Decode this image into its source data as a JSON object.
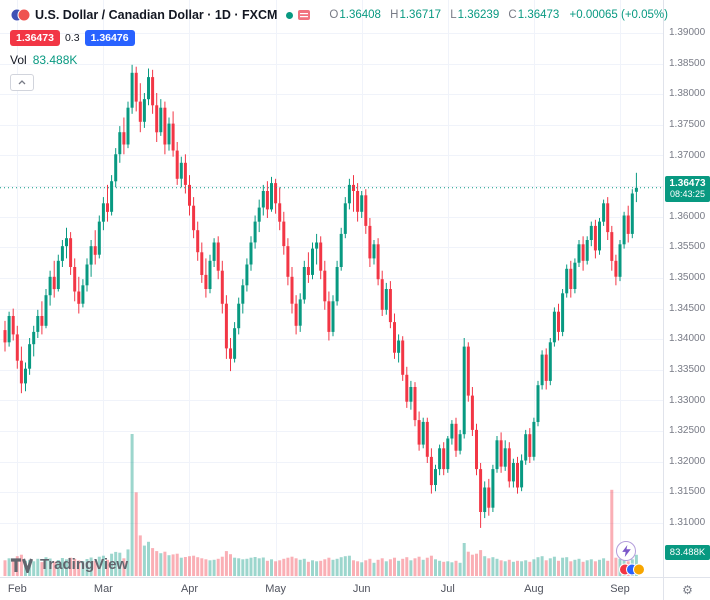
{
  "header": {
    "symbol_title": "U.S. Dollar / Canadian Dollar · 1D · FXCM",
    "ohlc": {
      "o_label": "O",
      "o": "1.36408",
      "h_label": "H",
      "h": "1.36717",
      "l_label": "L",
      "l": "1.36239",
      "c_label": "C",
      "c": "1.36473",
      "change": "+0.00065 (+0.05%)"
    },
    "bid": "1.36473",
    "spread": "0.3",
    "ask": "1.36476",
    "vol_label": "Vol",
    "vol_value": "83.488K"
  },
  "colors": {
    "up": "#089981",
    "down": "#f23645",
    "bid": "#f23645",
    "ask": "#2962ff"
  },
  "price_axis": {
    "ticks": [
      "1.39000",
      "1.38500",
      "1.38000",
      "1.37500",
      "1.37000",
      "1.36500",
      "1.36000",
      "1.35500",
      "1.35000",
      "1.34500",
      "1.34000",
      "1.33500",
      "1.33000",
      "1.32500",
      "1.32000",
      "1.31500",
      "1.31000"
    ],
    "price_badge": "1.36473",
    "countdown": "08:43:25",
    "volume_badge": "83.488K"
  },
  "footer": {
    "brand": "TradingView"
  },
  "chart_data": {
    "type": "candlestick",
    "symbol": "U.S. Dollar / Canadian Dollar",
    "interval": "1D",
    "exchange": "FXCM",
    "ohlc_current": {
      "open": 1.36408,
      "high": 1.36717,
      "low": 1.36239,
      "close": 1.36473,
      "change": 0.00065,
      "change_pct": 0.05
    },
    "y_range": [
      1.31,
      1.39
    ],
    "y_tick_step": 0.005,
    "volume_unit": "K",
    "last_volume": 83.488,
    "x_ticks": [
      {
        "label": "Feb",
        "i": 3
      },
      {
        "label": "Mar",
        "i": 24
      },
      {
        "label": "Apr",
        "i": 45
      },
      {
        "label": "May",
        "i": 66
      },
      {
        "label": "Jun",
        "i": 87
      },
      {
        "label": "Jul",
        "i": 108
      },
      {
        "label": "Aug",
        "i": 129
      },
      {
        "label": "Sep",
        "i": 150
      }
    ],
    "candles": [
      [
        1.3415,
        1.343,
        1.338,
        1.3395,
        62
      ],
      [
        1.3395,
        1.3445,
        1.3388,
        1.3438,
        70
      ],
      [
        1.3438,
        1.345,
        1.3398,
        1.3408,
        66
      ],
      [
        1.3408,
        1.3422,
        1.3352,
        1.3365,
        78
      ],
      [
        1.3365,
        1.3388,
        1.3312,
        1.3328,
        84
      ],
      [
        1.3328,
        1.3362,
        1.3315,
        1.3352,
        60
      ],
      [
        1.3352,
        1.3402,
        1.3342,
        1.3392,
        64
      ],
      [
        1.3392,
        1.3422,
        1.3372,
        1.3412,
        58
      ],
      [
        1.3412,
        1.3448,
        1.3402,
        1.3438,
        68
      ],
      [
        1.3438,
        1.3462,
        1.3408,
        1.3422,
        55
      ],
      [
        1.3422,
        1.3482,
        1.3418,
        1.3472,
        74
      ],
      [
        1.3472,
        1.3512,
        1.3455,
        1.3502,
        69
      ],
      [
        1.3502,
        1.3528,
        1.3468,
        1.3482,
        57
      ],
      [
        1.3482,
        1.3538,
        1.3478,
        1.3528,
        63
      ],
      [
        1.3528,
        1.3562,
        1.3518,
        1.3552,
        71
      ],
      [
        1.3552,
        1.3582,
        1.3532,
        1.3565,
        66
      ],
      [
        1.3565,
        1.3575,
        1.3505,
        1.3518,
        72
      ],
      [
        1.3518,
        1.3532,
        1.3462,
        1.3478,
        68
      ],
      [
        1.3478,
        1.3502,
        1.3442,
        1.3458,
        61
      ],
      [
        1.3458,
        1.3498,
        1.3452,
        1.3488,
        59
      ],
      [
        1.3488,
        1.3532,
        1.3478,
        1.3522,
        67
      ],
      [
        1.3522,
        1.3562,
        1.3502,
        1.3552,
        73
      ],
      [
        1.3552,
        1.3578,
        1.3522,
        1.3538,
        60
      ],
      [
        1.3538,
        1.3602,
        1.3532,
        1.3592,
        76
      ],
      [
        1.3592,
        1.3632,
        1.3578,
        1.3622,
        80
      ],
      [
        1.3622,
        1.3652,
        1.3592,
        1.3608,
        64
      ],
      [
        1.3608,
        1.3668,
        1.3602,
        1.3658,
        88
      ],
      [
        1.3658,
        1.3712,
        1.3648,
        1.3702,
        95
      ],
      [
        1.3702,
        1.3748,
        1.3688,
        1.3738,
        92
      ],
      [
        1.3738,
        1.3762,
        1.3702,
        1.3718,
        70
      ],
      [
        1.3718,
        1.3788,
        1.3712,
        1.3778,
        105
      ],
      [
        1.3778,
        1.3848,
        1.3768,
        1.3835,
        560
      ],
      [
        1.3835,
        1.3845,
        1.3772,
        1.3788,
        330
      ],
      [
        1.3788,
        1.3818,
        1.3738,
        1.3755,
        160
      ],
      [
        1.3755,
        1.3802,
        1.3745,
        1.3792,
        120
      ],
      [
        1.3792,
        1.3842,
        1.3782,
        1.3828,
        135
      ],
      [
        1.3828,
        1.384,
        1.3768,
        1.3782,
        110
      ],
      [
        1.3782,
        1.3802,
        1.3722,
        1.3738,
        98
      ],
      [
        1.3738,
        1.3792,
        1.3732,
        1.3778,
        90
      ],
      [
        1.3778,
        1.3788,
        1.3702,
        1.3718,
        96
      ],
      [
        1.3718,
        1.3762,
        1.3708,
        1.3752,
        82
      ],
      [
        1.3752,
        1.3772,
        1.3698,
        1.3708,
        85
      ],
      [
        1.3708,
        1.3722,
        1.3652,
        1.3662,
        88
      ],
      [
        1.3662,
        1.3698,
        1.3648,
        1.3688,
        72
      ],
      [
        1.3688,
        1.3702,
        1.3638,
        1.3652,
        75
      ],
      [
        1.3652,
        1.3668,
        1.3602,
        1.3618,
        78
      ],
      [
        1.3618,
        1.3632,
        1.3565,
        1.3578,
        80
      ],
      [
        1.3578,
        1.3592,
        1.3528,
        1.3542,
        74
      ],
      [
        1.3542,
        1.3558,
        1.3492,
        1.3505,
        70
      ],
      [
        1.3505,
        1.3532,
        1.3468,
        1.3482,
        66
      ],
      [
        1.3482,
        1.3538,
        1.3475,
        1.3528,
        62
      ],
      [
        1.3528,
        1.3565,
        1.3518,
        1.3558,
        64
      ],
      [
        1.3558,
        1.3568,
        1.3498,
        1.3512,
        68
      ],
      [
        1.3512,
        1.3528,
        1.3442,
        1.3458,
        76
      ],
      [
        1.3458,
        1.3472,
        1.3368,
        1.3385,
        98
      ],
      [
        1.3385,
        1.3402,
        1.3348,
        1.3368,
        86
      ],
      [
        1.3368,
        1.3428,
        1.3362,
        1.3418,
        72
      ],
      [
        1.3418,
        1.3468,
        1.3408,
        1.3458,
        70
      ],
      [
        1.3458,
        1.3498,
        1.3442,
        1.3488,
        66
      ],
      [
        1.3488,
        1.3532,
        1.3478,
        1.3522,
        68
      ],
      [
        1.3522,
        1.3568,
        1.3512,
        1.3558,
        72
      ],
      [
        1.3558,
        1.3602,
        1.3548,
        1.3592,
        75
      ],
      [
        1.3592,
        1.3628,
        1.3575,
        1.3615,
        70
      ],
      [
        1.3615,
        1.3652,
        1.3602,
        1.3642,
        73
      ],
      [
        1.3642,
        1.3658,
        1.3598,
        1.3612,
        60
      ],
      [
        1.3612,
        1.3665,
        1.3608,
        1.3655,
        66
      ],
      [
        1.3655,
        1.3662,
        1.3605,
        1.3622,
        58
      ],
      [
        1.3622,
        1.3648,
        1.3578,
        1.3592,
        62
      ],
      [
        1.3592,
        1.3608,
        1.3538,
        1.3552,
        68
      ],
      [
        1.3552,
        1.3565,
        1.3488,
        1.3502,
        72
      ],
      [
        1.3502,
        1.3518,
        1.3442,
        1.3458,
        76
      ],
      [
        1.3458,
        1.3472,
        1.3408,
        1.3422,
        70
      ],
      [
        1.3422,
        1.3475,
        1.3412,
        1.3465,
        64
      ],
      [
        1.3465,
        1.3528,
        1.3458,
        1.3518,
        68
      ],
      [
        1.3518,
        1.3542,
        1.3492,
        1.3505,
        56
      ],
      [
        1.3505,
        1.3558,
        1.3498,
        1.3548,
        62
      ],
      [
        1.3548,
        1.3572,
        1.3522,
        1.3558,
        58
      ],
      [
        1.3558,
        1.3568,
        1.3498,
        1.3512,
        60
      ],
      [
        1.3512,
        1.3528,
        1.3448,
        1.3462,
        66
      ],
      [
        1.3462,
        1.3478,
        1.3398,
        1.3412,
        72
      ],
      [
        1.3412,
        1.3472,
        1.3405,
        1.3462,
        64
      ],
      [
        1.3462,
        1.3528,
        1.3455,
        1.3518,
        68
      ],
      [
        1.3518,
        1.3582,
        1.3512,
        1.3572,
        74
      ],
      [
        1.3572,
        1.3632,
        1.3565,
        1.3622,
        78
      ],
      [
        1.3622,
        1.3662,
        1.3612,
        1.3652,
        80
      ],
      [
        1.3652,
        1.3668,
        1.3608,
        1.3642,
        62
      ],
      [
        1.3642,
        1.3655,
        1.3592,
        1.3608,
        58
      ],
      [
        1.3608,
        1.3642,
        1.3598,
        1.3635,
        54
      ],
      [
        1.3635,
        1.3645,
        1.3572,
        1.3585,
        62
      ],
      [
        1.3585,
        1.3598,
        1.3518,
        1.3532,
        68
      ],
      [
        1.3532,
        1.3562,
        1.3522,
        1.3555,
        52
      ],
      [
        1.3555,
        1.3565,
        1.3488,
        1.3498,
        64
      ],
      [
        1.3498,
        1.3512,
        1.3438,
        1.3448,
        70
      ],
      [
        1.3448,
        1.3492,
        1.344,
        1.3482,
        58
      ],
      [
        1.3482,
        1.3495,
        1.3418,
        1.3428,
        66
      ],
      [
        1.3428,
        1.3442,
        1.3368,
        1.3378,
        72
      ],
      [
        1.3378,
        1.3408,
        1.3362,
        1.3398,
        60
      ],
      [
        1.3398,
        1.3405,
        1.3332,
        1.3342,
        68
      ],
      [
        1.3342,
        1.3355,
        1.3288,
        1.3298,
        74
      ],
      [
        1.3298,
        1.3332,
        1.3285,
        1.3322,
        62
      ],
      [
        1.3322,
        1.333,
        1.3258,
        1.3268,
        70
      ],
      [
        1.3268,
        1.3282,
        1.3218,
        1.3228,
        76
      ],
      [
        1.3228,
        1.3272,
        1.3222,
        1.3265,
        64
      ],
      [
        1.3265,
        1.3272,
        1.3198,
        1.3208,
        72
      ],
      [
        1.3208,
        1.3222,
        1.3148,
        1.3162,
        80
      ],
      [
        1.3162,
        1.3195,
        1.3152,
        1.3188,
        66
      ],
      [
        1.3188,
        1.3228,
        1.3178,
        1.3222,
        60
      ],
      [
        1.3222,
        1.3232,
        1.3178,
        1.3188,
        56
      ],
      [
        1.3188,
        1.3242,
        1.3182,
        1.3238,
        58
      ],
      [
        1.3238,
        1.3268,
        1.3228,
        1.3262,
        54
      ],
      [
        1.3262,
        1.3272,
        1.3208,
        1.3218,
        60
      ],
      [
        1.3218,
        1.3252,
        1.3212,
        1.3245,
        52
      ],
      [
        1.3245,
        1.3402,
        1.3238,
        1.3388,
        130
      ],
      [
        1.3388,
        1.3395,
        1.3298,
        1.3308,
        96
      ],
      [
        1.3308,
        1.3322,
        1.3242,
        1.3252,
        84
      ],
      [
        1.3252,
        1.3262,
        1.3178,
        1.3188,
        88
      ],
      [
        1.3188,
        1.3198,
        1.3092,
        1.3118,
        102
      ],
      [
        1.3118,
        1.3168,
        1.3108,
        1.3158,
        78
      ],
      [
        1.3158,
        1.3172,
        1.3112,
        1.3125,
        70
      ],
      [
        1.3125,
        1.3195,
        1.3118,
        1.3188,
        74
      ],
      [
        1.3188,
        1.3242,
        1.3182,
        1.3235,
        68
      ],
      [
        1.3235,
        1.3248,
        1.3182,
        1.3192,
        62
      ],
      [
        1.3192,
        1.3235,
        1.3185,
        1.3222,
        58
      ],
      [
        1.3222,
        1.3232,
        1.3158,
        1.3168,
        64
      ],
      [
        1.3168,
        1.3205,
        1.3158,
        1.3198,
        56
      ],
      [
        1.3198,
        1.3208,
        1.3148,
        1.3158,
        60
      ],
      [
        1.3158,
        1.3212,
        1.3152,
        1.3202,
        58
      ],
      [
        1.3202,
        1.3252,
        1.3195,
        1.3245,
        62
      ],
      [
        1.3245,
        1.3255,
        1.3198,
        1.3208,
        56
      ],
      [
        1.3208,
        1.3272,
        1.3202,
        1.3265,
        66
      ],
      [
        1.3265,
        1.3332,
        1.3258,
        1.3325,
        74
      ],
      [
        1.3325,
        1.3382,
        1.3318,
        1.3375,
        78
      ],
      [
        1.3375,
        1.3385,
        1.3318,
        1.3332,
        62
      ],
      [
        1.3332,
        1.3402,
        1.3325,
        1.3395,
        70
      ],
      [
        1.3395,
        1.3452,
        1.3388,
        1.3445,
        76
      ],
      [
        1.3445,
        1.3458,
        1.3398,
        1.3412,
        60
      ],
      [
        1.3412,
        1.3482,
        1.3405,
        1.3475,
        72
      ],
      [
        1.3475,
        1.3522,
        1.3468,
        1.3515,
        74
      ],
      [
        1.3515,
        1.3528,
        1.3468,
        1.3482,
        58
      ],
      [
        1.3482,
        1.3532,
        1.3475,
        1.3525,
        64
      ],
      [
        1.3525,
        1.3562,
        1.3518,
        1.3555,
        68
      ],
      [
        1.3555,
        1.3568,
        1.3512,
        1.3528,
        56
      ],
      [
        1.3528,
        1.3568,
        1.3522,
        1.3562,
        62
      ],
      [
        1.3562,
        1.3592,
        1.3552,
        1.3585,
        66
      ],
      [
        1.3585,
        1.3595,
        1.3532,
        1.3545,
        58
      ],
      [
        1.3545,
        1.3598,
        1.3538,
        1.3592,
        64
      ],
      [
        1.3592,
        1.3628,
        1.3585,
        1.3622,
        70
      ],
      [
        1.3622,
        1.3632,
        1.3562,
        1.3575,
        60
      ],
      [
        1.3575,
        1.3585,
        1.3512,
        1.3528,
        340
      ],
      [
        1.3528,
        1.3538,
        1.3488,
        1.3502,
        72
      ],
      [
        1.3502,
        1.3562,
        1.3495,
        1.3555,
        68
      ],
      [
        1.3555,
        1.3608,
        1.3548,
        1.3602,
        64
      ],
      [
        1.3602,
        1.3618,
        1.3558,
        1.3572,
        58
      ],
      [
        1.3572,
        1.3645,
        1.3565,
        1.3638,
        66
      ],
      [
        1.36408,
        1.36717,
        1.36239,
        1.36473,
        83.488
      ]
    ]
  }
}
